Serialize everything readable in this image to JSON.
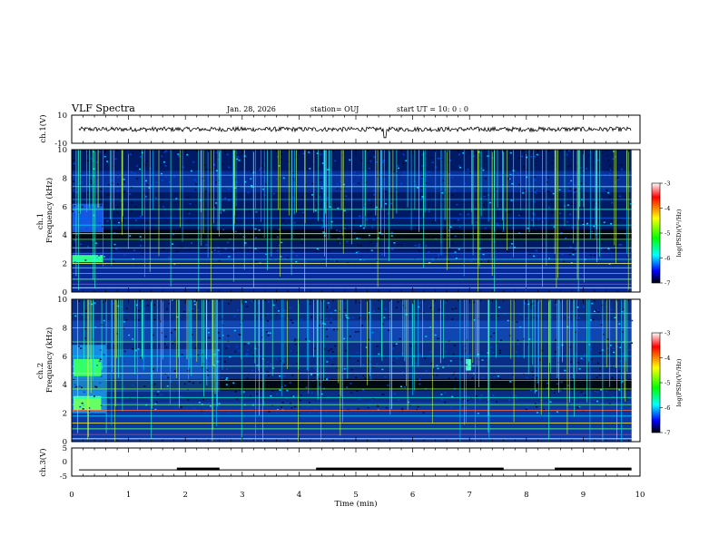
{
  "header": {
    "title": "VLF Spectra",
    "date": "Jan. 28, 2026",
    "station": "station= OUJ",
    "start_ut": "start  UT =   10: 0  : 0"
  },
  "axes": {
    "xlabel": "Time  (min)",
    "x_ticks": [
      "0",
      "1",
      "2",
      "3",
      "4",
      "5",
      "6",
      "7",
      "8",
      "9",
      "10"
    ],
    "ch1_v_label": "ch.1(V)",
    "ch1_v_ticks": [
      "10",
      "-10"
    ],
    "ch1_freq_label_line1": "ch.1",
    "ch1_freq_label_line2": "Frequency  (kHz)",
    "ch2_freq_label_line1": "ch.2",
    "ch2_freq_label_line2": "Frequency  (kHz)",
    "freq_ticks": [
      "0",
      "2",
      "4",
      "6",
      "8",
      "10"
    ],
    "ch3_v_label": "ch.3(V)",
    "ch3_v_ticks": [
      "5",
      "0",
      "-5"
    ]
  },
  "colorbar": {
    "label": "log(PSD)(V²/Hz)",
    "ticks": [
      "-3",
      "-4",
      "-5",
      "-6",
      "-7"
    ],
    "colors": [
      "#ffffff",
      "#ff0000",
      "#ffff00",
      "#00ff00",
      "#00ffff",
      "#0000ff",
      "#000000"
    ]
  },
  "chart_data": {
    "type": "heatmap",
    "x_unit": "min",
    "xlim": [
      0,
      10
    ],
    "data_end_min": 9.85,
    "panels": [
      {
        "id": "ch1-waveform",
        "type": "line",
        "ylim": [
          -10,
          10
        ],
        "baseline": 0
      },
      {
        "id": "ch1-spectrogram",
        "type": "heatmap",
        "ylim_khz": [
          0,
          10
        ],
        "zlim_log_psd": [
          -7,
          -3
        ]
      },
      {
        "id": "ch2-spectrogram",
        "type": "heatmap",
        "ylim_khz": [
          0,
          10
        ],
        "zlim_log_psd": [
          -7,
          -3
        ]
      },
      {
        "id": "ch3-waveform",
        "type": "line",
        "ylim": [
          -5,
          5
        ],
        "high_segments_min": [
          [
            1.85,
            2.6
          ],
          [
            4.3,
            7.6
          ],
          [
            8.5,
            9.85
          ]
        ],
        "low_value": -2.8,
        "high_value": -2.3
      }
    ]
  }
}
